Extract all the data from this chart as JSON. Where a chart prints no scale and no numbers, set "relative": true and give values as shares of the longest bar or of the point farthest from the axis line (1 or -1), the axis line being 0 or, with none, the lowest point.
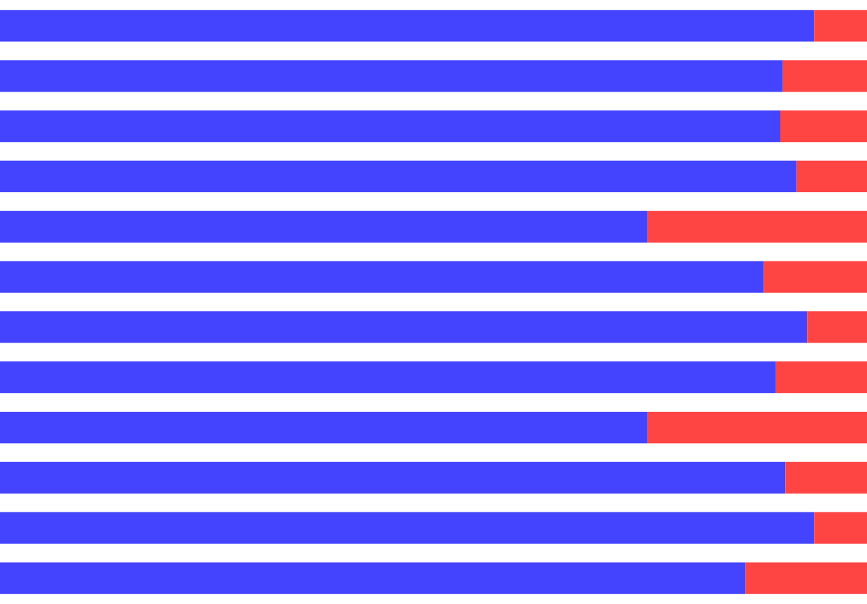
{
  "chart_data": {
    "type": "bar",
    "orientation": "horizontal",
    "stacked": true,
    "relative": true,
    "categories": [
      null,
      null,
      null,
      null,
      null,
      null,
      null,
      null,
      null,
      null,
      null,
      null
    ],
    "series": [
      {
        "color": "#4444ff",
        "values": [
          0.939,
          0.903,
          0.9,
          0.919,
          0.747,
          0.881,
          0.931,
          0.895,
          0.747,
          0.906,
          0.939,
          0.86
        ]
      },
      {
        "color": "#ff4444",
        "values": [
          0.061,
          0.097,
          0.1,
          0.081,
          0.253,
          0.119,
          0.069,
          0.105,
          0.253,
          0.094,
          0.061,
          0.14
        ]
      }
    ]
  }
}
